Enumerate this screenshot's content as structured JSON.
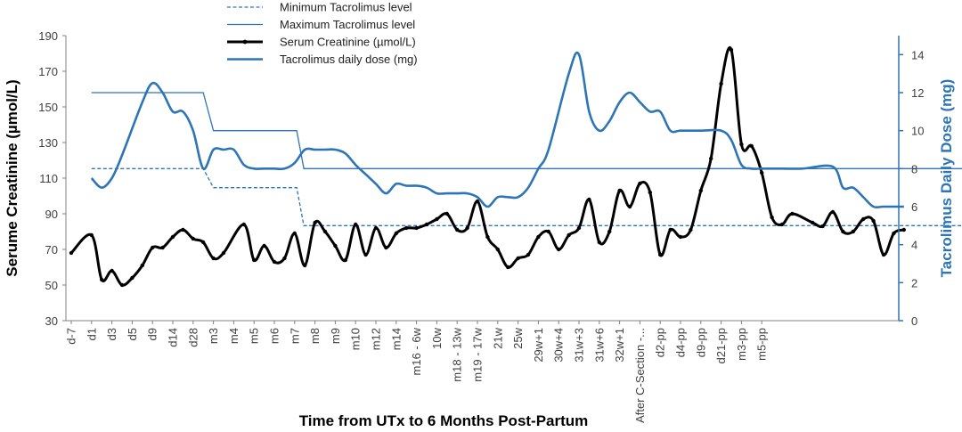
{
  "chart_data": {
    "type": "line",
    "xlabel": "Time from UTx to 6 Months Post-Partum",
    "ylabel_left": "Serume Creatinine (µmol/L)",
    "ylabel_right": "Tacrolimus Daily Dose (mg)",
    "ylim_left": [
      30,
      190
    ],
    "yticks_left": [
      30,
      50,
      70,
      90,
      110,
      130,
      150,
      170,
      190
    ],
    "ylim_right": [
      0,
      15
    ],
    "yticks_right": [
      0,
      2,
      4,
      6,
      8,
      10,
      12,
      14
    ],
    "legend_position": "top-center",
    "categories": [
      "d-7",
      "d1",
      "d3",
      "d5",
      "d9",
      "d14",
      "d28",
      "m3",
      "m4",
      "m5",
      "m6",
      "m7",
      "m8",
      "m9",
      "m10",
      "m12",
      "m14",
      "m16 - 6w",
      "10w",
      "m18 - 13w",
      "m19 - 17w",
      "21w",
      "25w",
      "29w+1",
      "30w+4",
      "31w+3",
      "31w+6",
      "32w+1",
      "After C-Section -...",
      "d2-pp",
      "d4-pp",
      "d9-pp",
      "d21-pp",
      "m3-pp",
      "m5-pp"
    ],
    "series": [
      {
        "name": "Minimum Tacrolimus level",
        "axis": "right",
        "style": "dashed",
        "color": "#2E75B6",
        "points": [
          [
            1,
            8
          ],
          [
            6.5,
            8
          ],
          [
            7,
            7
          ],
          [
            11.1,
            7
          ],
          [
            11.45,
            5
          ],
          [
            45.5,
            5
          ]
        ]
      },
      {
        "name": "Maximum Tacrolimus level",
        "axis": "right",
        "style": "solid-thin",
        "color": "#2E75B6",
        "points": [
          [
            1,
            12
          ],
          [
            6.5,
            12
          ],
          [
            7,
            10
          ],
          [
            11.1,
            10
          ],
          [
            11.45,
            8
          ],
          [
            45.5,
            8
          ]
        ]
      },
      {
        "name": "Serum Creatinine (µmol/L)",
        "axis": "left",
        "style": "thick-markers",
        "color": "#000000",
        "points": [
          [
            0,
            68
          ],
          [
            1,
            78
          ],
          [
            1.5,
            53
          ],
          [
            2,
            58
          ],
          [
            2.5,
            50
          ],
          [
            3,
            54
          ],
          [
            3.5,
            61
          ],
          [
            4,
            71
          ],
          [
            4.5,
            71
          ],
          [
            5,
            77
          ],
          [
            5.5,
            81
          ],
          [
            6,
            76
          ],
          [
            6.5,
            74
          ],
          [
            7,
            65
          ],
          [
            7.5,
            68
          ],
          [
            8.5,
            84
          ],
          [
            9,
            64
          ],
          [
            9.5,
            72
          ],
          [
            10,
            63
          ],
          [
            10.5,
            65
          ],
          [
            11,
            79
          ],
          [
            11.5,
            61
          ],
          [
            12,
            85
          ],
          [
            12.5,
            80
          ],
          [
            13,
            72
          ],
          [
            13.5,
            64
          ],
          [
            14,
            84
          ],
          [
            14.5,
            67
          ],
          [
            15,
            82
          ],
          [
            15.5,
            71
          ],
          [
            16,
            79
          ],
          [
            16.5,
            82
          ],
          [
            17,
            82
          ],
          [
            17.5,
            84
          ],
          [
            18,
            87
          ],
          [
            18.5,
            90
          ],
          [
            19,
            81
          ],
          [
            19.5,
            82
          ],
          [
            20,
            97
          ],
          [
            20.5,
            77
          ],
          [
            21,
            70
          ],
          [
            21.5,
            60
          ],
          [
            22,
            65
          ],
          [
            22.5,
            67
          ],
          [
            23,
            77
          ],
          [
            23.5,
            80
          ],
          [
            24,
            70
          ],
          [
            24.5,
            78
          ],
          [
            25,
            82
          ],
          [
            25.5,
            98
          ],
          [
            26,
            74
          ],
          [
            26.5,
            80
          ],
          [
            27,
            103
          ],
          [
            27.5,
            94
          ],
          [
            28,
            107
          ],
          [
            28.5,
            102
          ],
          [
            29,
            67
          ],
          [
            29.5,
            81
          ],
          [
            30,
            77
          ],
          [
            30.5,
            81
          ],
          [
            31,
            103
          ],
          [
            31.5,
            121
          ],
          [
            32,
            163
          ],
          [
            32.5,
            182
          ],
          [
            33,
            129
          ],
          [
            33.5,
            128
          ],
          [
            34,
            113
          ],
          [
            34.5,
            88
          ],
          [
            35,
            84
          ],
          [
            35.5,
            90
          ],
          [
            36.5,
            85
          ],
          [
            37,
            83
          ],
          [
            37.5,
            91
          ],
          [
            38,
            80
          ],
          [
            38.5,
            80
          ],
          [
            39,
            87
          ],
          [
            39.5,
            86
          ],
          [
            40,
            67
          ],
          [
            40.5,
            79
          ],
          [
            41,
            81
          ]
        ]
      },
      {
        "name": "Tacrolimus daily dose (mg)",
        "axis": "right",
        "style": "thick",
        "color": "#2E75B6",
        "points": [
          [
            1,
            7.5
          ],
          [
            1.5,
            7
          ],
          [
            2,
            7.5
          ],
          [
            2.5,
            8.7
          ],
          [
            3.5,
            11.5
          ],
          [
            4,
            12.5
          ],
          [
            4.5,
            12
          ],
          [
            5,
            11
          ],
          [
            5.5,
            11
          ],
          [
            6,
            10
          ],
          [
            6.5,
            8
          ],
          [
            7,
            9
          ],
          [
            7.5,
            9
          ],
          [
            8,
            9
          ],
          [
            8.5,
            8.2
          ],
          [
            9,
            8
          ],
          [
            9.5,
            8
          ],
          [
            10,
            8
          ],
          [
            10.5,
            8
          ],
          [
            11,
            8.3
          ],
          [
            11.5,
            9
          ],
          [
            12,
            9
          ],
          [
            12.5,
            9
          ],
          [
            13,
            9
          ],
          [
            13.5,
            8.8
          ],
          [
            14,
            8.2
          ],
          [
            14.5,
            7.7
          ],
          [
            15,
            7.2
          ],
          [
            15.5,
            6.7
          ],
          [
            16,
            7.2
          ],
          [
            16.5,
            7.1
          ],
          [
            17,
            7.1
          ],
          [
            17.5,
            7
          ],
          [
            18,
            6.7
          ],
          [
            18.5,
            6.7
          ],
          [
            19,
            6.7
          ],
          [
            19.5,
            6.7
          ],
          [
            20,
            6.5
          ],
          [
            20.5,
            6
          ],
          [
            21,
            6.5
          ],
          [
            21.5,
            6.5
          ],
          [
            22,
            6.5
          ],
          [
            22.5,
            7
          ],
          [
            23,
            8
          ],
          [
            23.5,
            9
          ],
          [
            24.5,
            13
          ],
          [
            25,
            14
          ],
          [
            25.5,
            11
          ],
          [
            26,
            10
          ],
          [
            26.5,
            10.5
          ],
          [
            27,
            11.5
          ],
          [
            27.5,
            12
          ],
          [
            28,
            11.5
          ],
          [
            28.5,
            11
          ],
          [
            29,
            11
          ],
          [
            29.5,
            10
          ],
          [
            30,
            10
          ],
          [
            31,
            10
          ],
          [
            32,
            10
          ],
          [
            32.5,
            9.5
          ],
          [
            33,
            8.2
          ],
          [
            33.5,
            8
          ],
          [
            34,
            8
          ],
          [
            35,
            8
          ],
          [
            36,
            8
          ],
          [
            37.5,
            8.1
          ],
          [
            38,
            7
          ],
          [
            38.5,
            7
          ],
          [
            39,
            6.5
          ],
          [
            39.5,
            6
          ],
          [
            40,
            6
          ],
          [
            41,
            6
          ]
        ]
      }
    ]
  }
}
